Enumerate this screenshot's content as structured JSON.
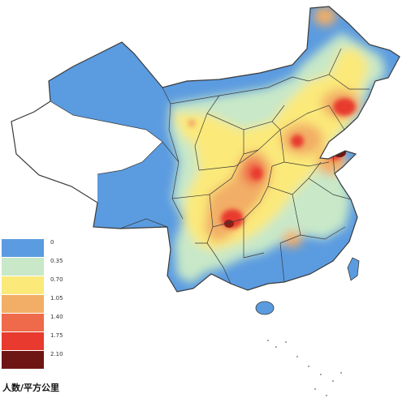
{
  "colors": {
    "blue": "#5b9be0",
    "green": "#c8e8c8",
    "yellow": "#fbe97a",
    "orange": "#f2ae66",
    "red_orange": "#ee6a4a",
    "red": "#e83a2e",
    "dark_red": "#6e1614",
    "border": "#3a3a3a",
    "background": "#ffffff"
  },
  "legend": {
    "title": "人数/平方公里",
    "items": [
      {
        "label": "0",
        "color": "#5b9be0"
      },
      {
        "label": "0.35",
        "color": "#c8e8c8"
      },
      {
        "label": "0.70",
        "color": "#fbe97a"
      },
      {
        "label": "1.05",
        "color": "#f2ae66"
      },
      {
        "label": "1.40",
        "color": "#ee6a4a"
      },
      {
        "label": "1.75",
        "color": "#e83a2e"
      },
      {
        "label": "2.10",
        "color": "#6e1614"
      }
    ]
  }
}
